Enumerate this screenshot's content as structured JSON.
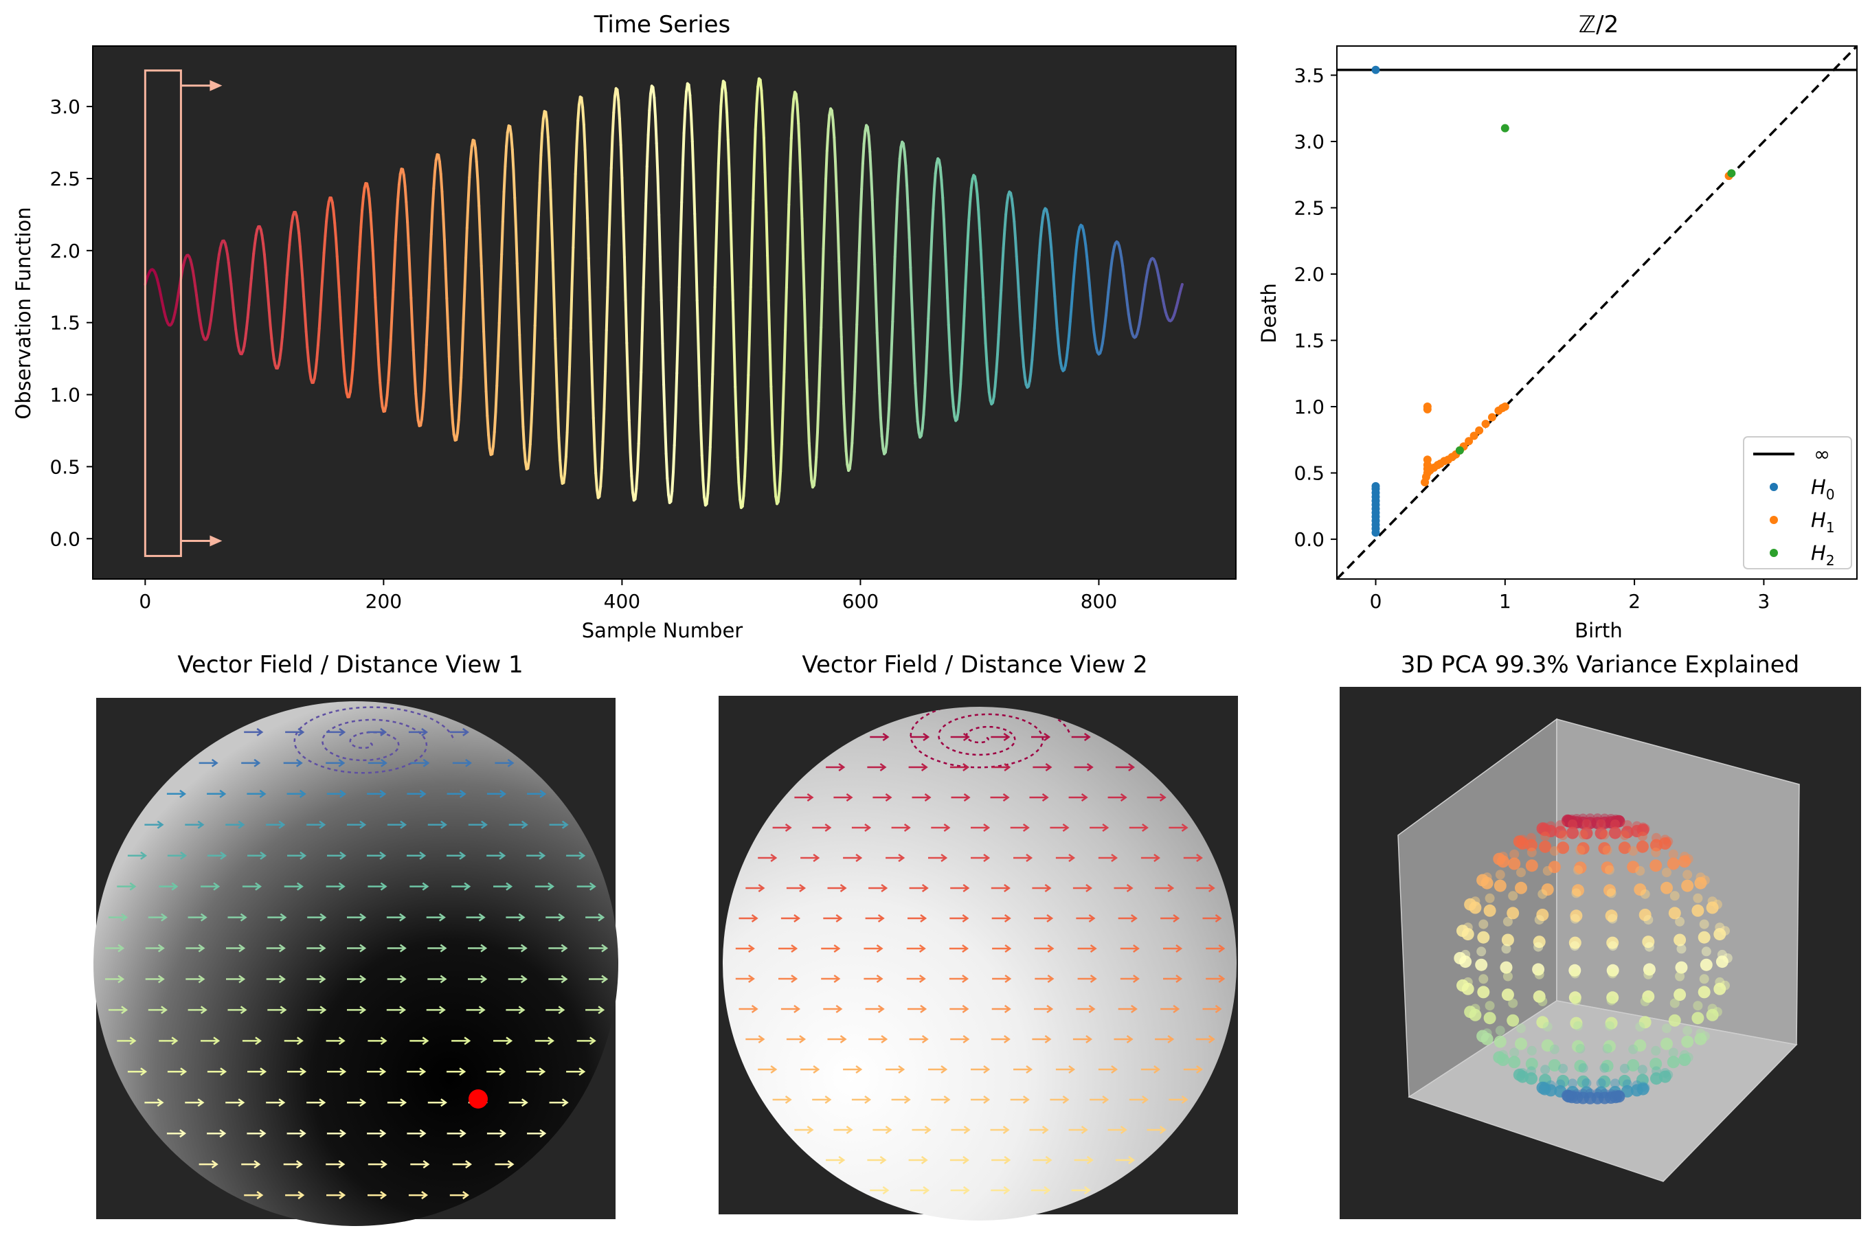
{
  "chart_data": [
    {
      "type": "line",
      "title": "Time Series",
      "xlabel": "Sample Number",
      "ylabel": "Observation Function",
      "xlim": [
        -44,
        915
      ],
      "ylim": [
        -0.28,
        3.42
      ],
      "xticks": [
        0,
        200,
        400,
        600,
        800
      ],
      "yticks": [
        0.0,
        0.5,
        1.0,
        1.5,
        2.0,
        2.5,
        3.0
      ],
      "background": "#262626",
      "colormap": "Spectral",
      "series": [
        {
          "samples": 870,
          "center": 1.7,
          "period": 30,
          "amplitude_envelope": [
            [
              0,
              0.15
            ],
            [
              380,
              1.42
            ],
            [
              520,
              1.5
            ],
            [
              870,
              0.15
            ]
          ],
          "description": "oscillation whose amplitude grows then shrinks, colored by sample index"
        }
      ],
      "window_annotation": {
        "x_range": [
          0,
          30
        ],
        "y_range": [
          -0.12,
          3.25
        ],
        "color": "#f7b59f"
      }
    },
    {
      "type": "scatter",
      "title": "ℤ/2",
      "xlabel": "Birth",
      "ylabel": "Death",
      "xlim": [
        -0.3,
        3.72
      ],
      "ylim": [
        -0.3,
        3.72
      ],
      "xticks": [
        0,
        1,
        2,
        3
      ],
      "yticks": [
        0.0,
        0.5,
        1.0,
        1.5,
        2.0,
        2.5,
        3.0,
        3.5
      ],
      "infinity_line": 3.54,
      "legend_position": "bottom-right",
      "legend": [
        "∞",
        "H",
        "H",
        "H"
      ],
      "legend_subscripts": [
        "0",
        "1",
        "2"
      ],
      "series": [
        {
          "name": "H0",
          "color": "#1f77b4",
          "points": [
            [
              0,
              0.05
            ],
            [
              0,
              0.08
            ],
            [
              0,
              0.11
            ],
            [
              0,
              0.14
            ],
            [
              0,
              0.17
            ],
            [
              0,
              0.2
            ],
            [
              0,
              0.23
            ],
            [
              0,
              0.26
            ],
            [
              0,
              0.29
            ],
            [
              0,
              0.32
            ],
            [
              0,
              0.35
            ],
            [
              0,
              0.38
            ],
            [
              0,
              0.4
            ],
            [
              0,
              3.54
            ]
          ]
        },
        {
          "name": "H1",
          "color": "#ff7f0e",
          "points": [
            [
              0.4,
              1.0
            ],
            [
              0.4,
              0.98
            ],
            [
              0.38,
              0.43
            ],
            [
              0.39,
              0.47
            ],
            [
              0.4,
              0.5
            ],
            [
              0.4,
              0.53
            ],
            [
              0.4,
              0.56
            ],
            [
              0.4,
              0.6
            ],
            [
              0.42,
              0.52
            ],
            [
              0.45,
              0.54
            ],
            [
              0.48,
              0.56
            ],
            [
              0.5,
              0.57
            ],
            [
              0.53,
              0.59
            ],
            [
              0.56,
              0.6
            ],
            [
              0.59,
              0.62
            ],
            [
              0.62,
              0.64
            ],
            [
              0.65,
              0.67
            ],
            [
              0.68,
              0.7
            ],
            [
              0.72,
              0.74
            ],
            [
              0.76,
              0.78
            ],
            [
              0.8,
              0.82
            ],
            [
              0.85,
              0.87
            ],
            [
              0.9,
              0.92
            ],
            [
              0.95,
              0.97
            ],
            [
              0.98,
              0.99
            ],
            [
              1.0,
              1.0
            ],
            [
              2.73,
              2.74
            ]
          ]
        },
        {
          "name": "H2",
          "color": "#2ca02c",
          "points": [
            [
              1.0,
              3.1
            ],
            [
              2.75,
              2.76
            ],
            [
              0.65,
              0.67
            ]
          ]
        }
      ]
    },
    {
      "type": "other",
      "title": "Vector Field / Distance View 1",
      "background": "#ffffff",
      "marked_point_color": "#ff0000"
    },
    {
      "type": "other",
      "title": "Vector Field / Distance View 2",
      "background": "#ffffff"
    },
    {
      "type": "scatter",
      "title": "3D PCA 99.3% Variance Explained",
      "background": "#262626",
      "colormap": "Spectral"
    }
  ]
}
